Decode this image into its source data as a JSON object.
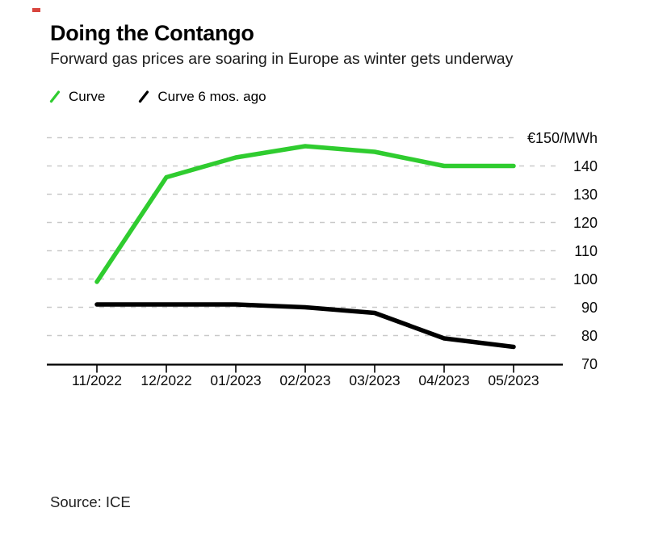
{
  "header": {
    "title": "Doing the Contango",
    "subtitle": "Forward gas prices are soaring in Europe as winter gets underway",
    "red_mark_color": "#d8453e"
  },
  "chart_data": {
    "type": "line",
    "title": "Doing the Contango",
    "subtitle": "Forward gas prices are soaring in Europe as winter gets underway",
    "categories": [
      "11/2022",
      "12/2022",
      "01/2023",
      "02/2023",
      "03/2023",
      "04/2023",
      "05/2023"
    ],
    "series": [
      {
        "name": "Curve",
        "color": "#2fcc2f",
        "values": [
          99,
          136,
          143,
          147,
          145,
          140,
          140
        ]
      },
      {
        "name": "Curve 6 mos. ago",
        "color": "#000000",
        "values": [
          91,
          91,
          91,
          90,
          88,
          79,
          76
        ]
      }
    ],
    "ylim": [
      70,
      150
    ],
    "ytick_interval": 10,
    "ytick_labels": [
      "70",
      "80",
      "90",
      "100",
      "110",
      "120",
      "130",
      "140"
    ],
    "top_axis_label": "€150/MWh",
    "unit": "€/MWh",
    "grid": "horizontal-dashed",
    "grid_color": "#c9c9c9",
    "axis_color": "#000000",
    "legend_position": "top-left"
  },
  "source": {
    "label": "Source: ICE"
  }
}
